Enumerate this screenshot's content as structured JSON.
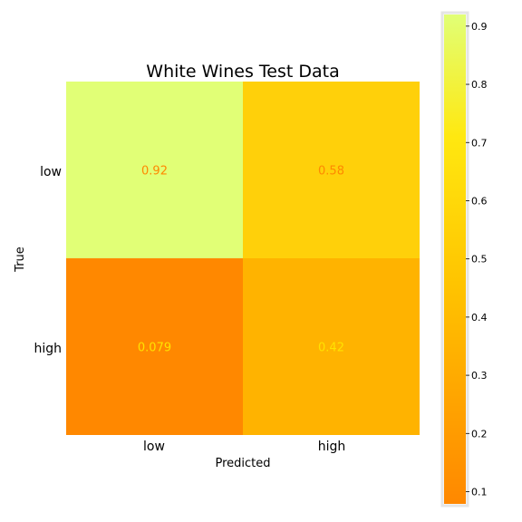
{
  "chart_data": {
    "type": "heatmap",
    "title": "White Wines Test Data",
    "xlabel": "Predicted",
    "ylabel": "True",
    "x_categories": [
      "low",
      "high"
    ],
    "y_categories": [
      "low",
      "high"
    ],
    "cells": [
      {
        "row": 0,
        "col": 0,
        "value": 0.92,
        "label": "0.92",
        "color": "#e1ff76",
        "text_color": "#ff8800"
      },
      {
        "row": 0,
        "col": 1,
        "value": 0.58,
        "label": "0.58",
        "color": "#ffd00a",
        "text_color": "#ff8800"
      },
      {
        "row": 1,
        "col": 0,
        "value": 0.079,
        "label": "0.079",
        "color": "#ff8800",
        "text_color": "#ffe200"
      },
      {
        "row": 1,
        "col": 1,
        "value": 0.42,
        "label": "0.42",
        "color": "#ffb300",
        "text_color": "#ffe200"
      }
    ],
    "colorbar": {
      "range": [
        0.079,
        0.92
      ],
      "ticks": [
        0.1,
        0.2,
        0.3,
        0.4,
        0.5,
        0.6,
        0.7,
        0.8,
        0.9
      ],
      "tick_labels": [
        "0.1",
        "0.2",
        "0.3",
        "0.4",
        "0.5",
        "0.6",
        "0.7",
        "0.8",
        "0.9"
      ],
      "colors": [
        "#ff8800",
        "#ffb000",
        "#ffe200",
        "#e1ff76"
      ]
    },
    "grid": false
  }
}
